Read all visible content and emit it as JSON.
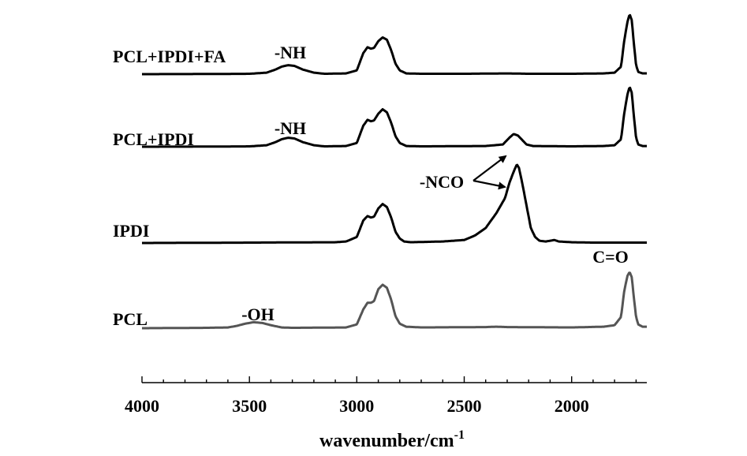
{
  "chart_data": {
    "type": "line",
    "xlabel": "wavenumber/cm",
    "xlabel_superscript": "-1",
    "xlim": [
      4000,
      1650
    ],
    "x_reversed": true,
    "ticks": [
      4000,
      3500,
      3000,
      2500,
      2000
    ],
    "y_axis": "hidden",
    "colors": {
      "black": "#000000",
      "gray": "#555555"
    },
    "series": [
      {
        "name": "PCL+IPDI+FA",
        "color": "#000000",
        "points": [
          [
            4000,
            0
          ],
          [
            3700,
            0.2
          ],
          [
            3500,
            0.5
          ],
          [
            3420,
            2
          ],
          [
            3380,
            6
          ],
          [
            3350,
            10
          ],
          [
            3320,
            12
          ],
          [
            3290,
            11
          ],
          [
            3250,
            6
          ],
          [
            3200,
            2
          ],
          [
            3150,
            0.5
          ],
          [
            3050,
            1
          ],
          [
            3000,
            5
          ],
          [
            2970,
            28
          ],
          [
            2950,
            36
          ],
          [
            2935,
            34
          ],
          [
            2920,
            35
          ],
          [
            2900,
            44
          ],
          [
            2880,
            49
          ],
          [
            2860,
            46
          ],
          [
            2840,
            32
          ],
          [
            2820,
            14
          ],
          [
            2800,
            5
          ],
          [
            2770,
            1
          ],
          [
            2700,
            0.5
          ],
          [
            2500,
            0.5
          ],
          [
            2300,
            1
          ],
          [
            2200,
            0.5
          ],
          [
            2000,
            0.5
          ],
          [
            1850,
            1
          ],
          [
            1800,
            2
          ],
          [
            1770,
            10
          ],
          [
            1755,
            45
          ],
          [
            1740,
            70
          ],
          [
            1730,
            80
          ],
          [
            1720,
            72
          ],
          [
            1710,
            40
          ],
          [
            1700,
            12
          ],
          [
            1690,
            3
          ],
          [
            1670,
            1
          ],
          [
            1650,
            1
          ]
        ]
      },
      {
        "name": "PCL+IPDI",
        "color": "#000000",
        "points": [
          [
            4000,
            0
          ],
          [
            3700,
            0.2
          ],
          [
            3500,
            0.5
          ],
          [
            3420,
            2
          ],
          [
            3380,
            6
          ],
          [
            3350,
            10
          ],
          [
            3320,
            12
          ],
          [
            3290,
            11
          ],
          [
            3250,
            6
          ],
          [
            3200,
            2
          ],
          [
            3150,
            0.5
          ],
          [
            3050,
            1
          ],
          [
            3000,
            5
          ],
          [
            2970,
            28
          ],
          [
            2950,
            36
          ],
          [
            2935,
            34
          ],
          [
            2920,
            35
          ],
          [
            2900,
            44
          ],
          [
            2880,
            50
          ],
          [
            2860,
            46
          ],
          [
            2840,
            32
          ],
          [
            2820,
            14
          ],
          [
            2800,
            5
          ],
          [
            2770,
            1
          ],
          [
            2700,
            0.5
          ],
          [
            2400,
            1
          ],
          [
            2320,
            3
          ],
          [
            2290,
            12
          ],
          [
            2270,
            17
          ],
          [
            2250,
            15
          ],
          [
            2230,
            9
          ],
          [
            2210,
            3
          ],
          [
            2180,
            1
          ],
          [
            2000,
            0.5
          ],
          [
            1850,
            1
          ],
          [
            1800,
            2
          ],
          [
            1770,
            10
          ],
          [
            1755,
            45
          ],
          [
            1740,
            70
          ],
          [
            1730,
            80
          ],
          [
            1720,
            72
          ],
          [
            1710,
            40
          ],
          [
            1700,
            12
          ],
          [
            1690,
            3
          ],
          [
            1670,
            1
          ],
          [
            1650,
            1
          ]
        ]
      },
      {
        "name": "IPDI",
        "color": "#000000",
        "points": [
          [
            4000,
            0
          ],
          [
            3700,
            0.3
          ],
          [
            3500,
            0.5
          ],
          [
            3300,
            0.8
          ],
          [
            3100,
            1
          ],
          [
            3050,
            2
          ],
          [
            3000,
            8
          ],
          [
            2970,
            30
          ],
          [
            2950,
            36
          ],
          [
            2935,
            34
          ],
          [
            2920,
            35
          ],
          [
            2900,
            46
          ],
          [
            2880,
            52
          ],
          [
            2860,
            48
          ],
          [
            2840,
            34
          ],
          [
            2820,
            15
          ],
          [
            2800,
            6
          ],
          [
            2780,
            2
          ],
          [
            2750,
            1
          ],
          [
            2600,
            2
          ],
          [
            2500,
            4
          ],
          [
            2450,
            10
          ],
          [
            2400,
            20
          ],
          [
            2350,
            40
          ],
          [
            2310,
            60
          ],
          [
            2290,
            80
          ],
          [
            2270,
            95
          ],
          [
            2255,
            105
          ],
          [
            2245,
            100
          ],
          [
            2230,
            80
          ],
          [
            2210,
            50
          ],
          [
            2190,
            20
          ],
          [
            2170,
            8
          ],
          [
            2150,
            3
          ],
          [
            2120,
            2
          ],
          [
            2100,
            3
          ],
          [
            2080,
            4
          ],
          [
            2060,
            2
          ],
          [
            2000,
            1
          ],
          [
            1900,
            0.5
          ],
          [
            1650,
            0.5
          ]
        ]
      },
      {
        "name": "PCL",
        "color": "#555555",
        "points": [
          [
            4000,
            0
          ],
          [
            3700,
            0.5
          ],
          [
            3600,
            1
          ],
          [
            3560,
            3
          ],
          [
            3520,
            6
          ],
          [
            3480,
            8
          ],
          [
            3440,
            7
          ],
          [
            3400,
            4
          ],
          [
            3350,
            1
          ],
          [
            3300,
            0.5
          ],
          [
            3050,
            1
          ],
          [
            3000,
            5
          ],
          [
            2970,
            25
          ],
          [
            2950,
            34
          ],
          [
            2935,
            34
          ],
          [
            2920,
            36
          ],
          [
            2900,
            52
          ],
          [
            2880,
            58
          ],
          [
            2860,
            54
          ],
          [
            2840,
            38
          ],
          [
            2820,
            16
          ],
          [
            2800,
            6
          ],
          [
            2770,
            2
          ],
          [
            2700,
            1
          ],
          [
            2400,
            1.5
          ],
          [
            2350,
            2
          ],
          [
            2300,
            1.5
          ],
          [
            2000,
            1
          ],
          [
            1850,
            2
          ],
          [
            1800,
            4
          ],
          [
            1770,
            15
          ],
          [
            1755,
            50
          ],
          [
            1740,
            70
          ],
          [
            1730,
            75
          ],
          [
            1720,
            68
          ],
          [
            1710,
            40
          ],
          [
            1700,
            15
          ],
          [
            1690,
            5
          ],
          [
            1670,
            2
          ],
          [
            1650,
            2
          ]
        ]
      }
    ],
    "annotations": [
      {
        "text": "-NH",
        "x": 3320,
        "series": "PCL+IPDI+FA"
      },
      {
        "text": "-NH",
        "x": 3320,
        "series": "PCL+IPDI"
      },
      {
        "text": "-NCO",
        "x": 2510,
        "series": "IPDI"
      },
      {
        "text": "C=O",
        "x": 1730,
        "series": "IPDI"
      },
      {
        "text": "-OH",
        "x": 3480,
        "series": "PCL"
      }
    ]
  }
}
